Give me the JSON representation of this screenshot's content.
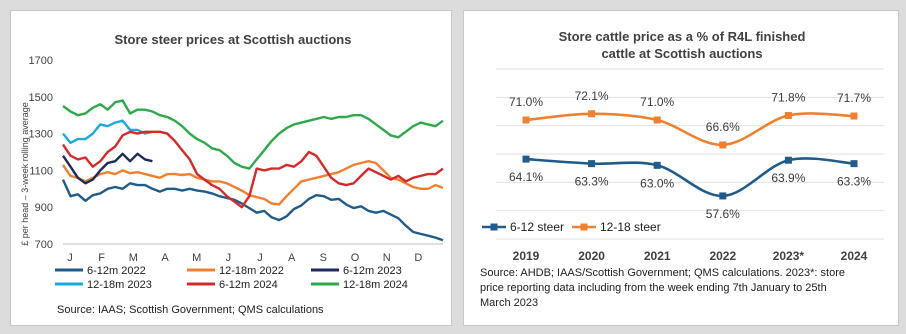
{
  "left_chart": {
    "title": "Store steer prices at Scottish auctions",
    "source": "Source: IAAS; Scottish Government; QMS calculations",
    "legend": [
      {
        "label": "6-12m 2022",
        "series": "6-12m 2022",
        "color": "#1f5c8b"
      },
      {
        "label": "12-18m 2022",
        "series": "12-18m 2022",
        "color": "#f08030"
      },
      {
        "label": "6-12m 2023",
        "series": "6-12m 2023",
        "color": "#1e2a5a"
      },
      {
        "label": "12-18m 2023",
        "series": "12-18m 2023",
        "color": "#1ea8e0"
      },
      {
        "label": "6-12m 2024",
        "series": "6-12m 2024",
        "color": "#d42a2a"
      },
      {
        "label": "12-18m 2024",
        "series": "12-18m 2024",
        "color": "#2fa84a"
      }
    ]
  },
  "right_chart": {
    "title_line1": "Store cattle price as a % of R4L finished",
    "title_line2": "cattle at Scottish auctions",
    "legend": [
      {
        "label": "6-12 steer",
        "color": "#1f5c8b"
      },
      {
        "label": "12-18 steer",
        "color": "#f08030"
      }
    ],
    "source_lines": [
      "Source: AHDB; IAAS/Scottish  Government; QMS calculations. 2023*: store",
      "price reporting data including from the week ending 7th January to 25th",
      "March 2023"
    ]
  },
  "chart_data": [
    {
      "type": "line",
      "title": "Store steer prices at Scottish auctions",
      "ylabel": "£ per head – 3-week rolling average",
      "ylim": [
        700,
        1700
      ],
      "yticks": [
        700,
        900,
        1100,
        1300,
        1500,
        1700
      ],
      "x_ticks": [
        "J",
        "F",
        "M",
        "A",
        "M",
        "J",
        "J",
        "A",
        "S",
        "O",
        "N",
        "D"
      ],
      "x_units": "week of year",
      "xlim": [
        1,
        52
      ],
      "grid": false,
      "series": [
        {
          "name": "6-12m 2022",
          "color": "#1f5c8b",
          "x": [
            1,
            2,
            3,
            4,
            5,
            6,
            7,
            8,
            9,
            10,
            11,
            12,
            13,
            14,
            15,
            16,
            17,
            18,
            19,
            20,
            21,
            22,
            23,
            24,
            25,
            26,
            27,
            28,
            29,
            30,
            31,
            32,
            33,
            34,
            35,
            36,
            37,
            38,
            39,
            40,
            41,
            42,
            43,
            44,
            45,
            46,
            47,
            48,
            49,
            50,
            51,
            52
          ],
          "y": [
            1050,
            960,
            970,
            935,
            965,
            975,
            1000,
            1010,
            1000,
            1030,
            1020,
            1020,
            1000,
            985,
            1000,
            1000,
            990,
            1000,
            990,
            985,
            975,
            960,
            950,
            940,
            920,
            895,
            870,
            880,
            845,
            830,
            850,
            890,
            910,
            945,
            965,
            960,
            940,
            945,
            915,
            895,
            905,
            880,
            870,
            880,
            860,
            840,
            800,
            765,
            755,
            745,
            735,
            720
          ]
        },
        {
          "name": "12-18m 2022",
          "color": "#f08030",
          "x": [
            1,
            2,
            3,
            4,
            5,
            6,
            7,
            8,
            9,
            10,
            11,
            12,
            13,
            14,
            15,
            16,
            17,
            18,
            19,
            20,
            21,
            22,
            23,
            24,
            25,
            26,
            27,
            28,
            29,
            30,
            31,
            32,
            33,
            34,
            35,
            36,
            37,
            38,
            39,
            40,
            41,
            42,
            43,
            44,
            45,
            46,
            47,
            48,
            49,
            50,
            51,
            52
          ],
          "y": [
            1130,
            1070,
            1060,
            1040,
            1060,
            1080,
            1090,
            1080,
            1100,
            1085,
            1090,
            1080,
            1070,
            1060,
            1080,
            1080,
            1075,
            1080,
            1060,
            1050,
            1040,
            1040,
            1030,
            1010,
            990,
            965,
            955,
            945,
            920,
            915,
            960,
            1000,
            1040,
            1050,
            1060,
            1070,
            1080,
            1090,
            1110,
            1130,
            1140,
            1150,
            1140,
            1100,
            1060,
            1050,
            1030,
            1010,
            1000,
            1000,
            1020,
            1005
          ]
        },
        {
          "name": "6-12m 2023",
          "color": "#1e2a5a",
          "x": [
            1,
            2,
            3,
            4,
            5,
            6,
            7,
            8,
            9,
            10,
            11,
            12,
            13
          ],
          "y": [
            1180,
            1120,
            1060,
            1030,
            1050,
            1100,
            1140,
            1150,
            1190,
            1150,
            1190,
            1160,
            1150
          ]
        },
        {
          "name": "12-18m 2023",
          "color": "#1ea8e0",
          "x": [
            1,
            2,
            3,
            4,
            5,
            6,
            7,
            8,
            9,
            10,
            11,
            12,
            13
          ],
          "y": [
            1300,
            1250,
            1270,
            1270,
            1300,
            1350,
            1340,
            1360,
            1370,
            1320,
            1320,
            1300,
            1310
          ]
        },
        {
          "name": "6-12m 2024",
          "color": "#d42a2a",
          "x": [
            1,
            2,
            3,
            4,
            5,
            6,
            7,
            8,
            9,
            10,
            11,
            12,
            13,
            14,
            15,
            16,
            17,
            18,
            19,
            20,
            21,
            22,
            23,
            24,
            25,
            26,
            27,
            28,
            29,
            30,
            31,
            32,
            33,
            34,
            35,
            36,
            37,
            38,
            39,
            40,
            41,
            42,
            43,
            44,
            45,
            46,
            47,
            48,
            49,
            50,
            51,
            52
          ],
          "y": [
            1240,
            1180,
            1160,
            1170,
            1120,
            1150,
            1200,
            1230,
            1290,
            1310,
            1300,
            1310,
            1310,
            1310,
            1300,
            1260,
            1210,
            1160,
            1080,
            1050,
            1020,
            1000,
            960,
            930,
            900,
            960,
            1110,
            1100,
            1110,
            1110,
            1130,
            1120,
            1150,
            1200,
            1180,
            1120,
            1060,
            1030,
            1020,
            1030,
            1070,
            1110,
            1090,
            1070,
            1050,
            1070,
            1040,
            1060,
            1070,
            1080,
            1080,
            1110
          ]
        },
        {
          "name": "12-18m 2024",
          "color": "#2fa84a",
          "x": [
            1,
            2,
            3,
            4,
            5,
            6,
            7,
            8,
            9,
            10,
            11,
            12,
            13,
            14,
            15,
            16,
            17,
            18,
            19,
            20,
            21,
            22,
            23,
            24,
            25,
            26,
            27,
            28,
            29,
            30,
            31,
            32,
            33,
            34,
            35,
            36,
            37,
            38,
            39,
            40,
            41,
            42,
            43,
            44,
            45,
            46,
            47,
            48,
            49,
            50,
            51,
            52
          ],
          "y": [
            1450,
            1420,
            1400,
            1410,
            1440,
            1460,
            1430,
            1470,
            1480,
            1410,
            1430,
            1430,
            1420,
            1400,
            1390,
            1370,
            1340,
            1300,
            1270,
            1250,
            1220,
            1210,
            1180,
            1140,
            1120,
            1110,
            1160,
            1210,
            1260,
            1300,
            1330,
            1350,
            1360,
            1370,
            1380,
            1390,
            1380,
            1390,
            1390,
            1400,
            1400,
            1380,
            1350,
            1320,
            1290,
            1280,
            1310,
            1340,
            1360,
            1350,
            1340,
            1370
          ]
        }
      ]
    },
    {
      "type": "line",
      "title": "Store cattle price as a % of R4L finished cattle at Scottish auctions",
      "categories": [
        "2019",
        "2020",
        "2021",
        "2022",
        "2023*",
        "2024"
      ],
      "ylim": [
        50,
        80
      ],
      "grid": true,
      "legend_position": "bottom-left",
      "series": [
        {
          "name": "6-12 steer",
          "color": "#1f5c8b",
          "values": [
            64.1,
            63.3,
            63.0,
            57.6,
            63.9,
            63.3
          ],
          "labels": [
            "64.1%",
            "63.3%",
            "63.0%",
            "57.6%",
            "63.9%",
            "63.3%"
          ]
        },
        {
          "name": "12-18 steer",
          "color": "#f08030",
          "values": [
            71.0,
            72.1,
            71.0,
            66.6,
            71.8,
            71.7
          ],
          "labels": [
            "71.0%",
            "72.1%",
            "71.0%",
            "66.6%",
            "71.8%",
            "71.7%"
          ]
        }
      ]
    }
  ]
}
